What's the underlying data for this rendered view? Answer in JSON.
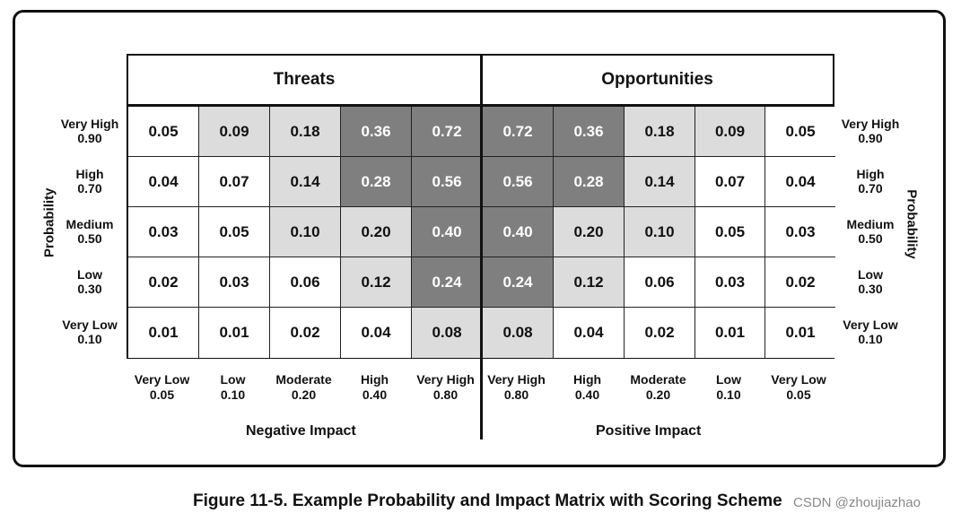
{
  "header": {
    "threats": "Threats",
    "opportunities": "Opportunities"
  },
  "probability_rows": [
    {
      "label": "Very High",
      "value": "0.90"
    },
    {
      "label": "High",
      "value": "0.70"
    },
    {
      "label": "Medium",
      "value": "0.50"
    },
    {
      "label": "Low",
      "value": "0.30"
    },
    {
      "label": "Very Low",
      "value": "0.10"
    }
  ],
  "impact_columns": [
    {
      "label": "Very Low",
      "value": "0.05"
    },
    {
      "label": "Low",
      "value": "0.10"
    },
    {
      "label": "Moderate",
      "value": "0.20"
    },
    {
      "label": "High",
      "value": "0.40"
    },
    {
      "label": "Very High",
      "value": "0.80"
    },
    {
      "label": "Very High",
      "value": "0.80"
    },
    {
      "label": "High",
      "value": "0.40"
    },
    {
      "label": "Moderate",
      "value": "0.20"
    },
    {
      "label": "Low",
      "value": "0.10"
    },
    {
      "label": "Very Low",
      "value": "0.05"
    }
  ],
  "matrix": {
    "values": [
      [
        "0.05",
        "0.09",
        "0.18",
        "0.36",
        "0.72",
        "0.72",
        "0.36",
        "0.18",
        "0.09",
        "0.05"
      ],
      [
        "0.04",
        "0.07",
        "0.14",
        "0.28",
        "0.56",
        "0.56",
        "0.28",
        "0.14",
        "0.07",
        "0.04"
      ],
      [
        "0.03",
        "0.05",
        "0.10",
        "0.20",
        "0.40",
        "0.40",
        "0.20",
        "0.10",
        "0.05",
        "0.03"
      ],
      [
        "0.02",
        "0.03",
        "0.06",
        "0.12",
        "0.24",
        "0.24",
        "0.12",
        "0.06",
        "0.03",
        "0.02"
      ],
      [
        "0.01",
        "0.01",
        "0.02",
        "0.04",
        "0.08",
        "0.08",
        "0.04",
        "0.02",
        "0.01",
        "0.01"
      ]
    ],
    "shading": [
      [
        "white",
        "light",
        "light",
        "dark",
        "dark",
        "dark",
        "dark",
        "light",
        "light",
        "white"
      ],
      [
        "white",
        "white",
        "light",
        "dark",
        "dark",
        "dark",
        "dark",
        "light",
        "white",
        "white"
      ],
      [
        "white",
        "white",
        "light",
        "light",
        "dark",
        "dark",
        "light",
        "light",
        "white",
        "white"
      ],
      [
        "white",
        "white",
        "white",
        "light",
        "dark",
        "dark",
        "light",
        "white",
        "white",
        "white"
      ],
      [
        "white",
        "white",
        "white",
        "white",
        "light",
        "light",
        "white",
        "white",
        "white",
        "white"
      ]
    ],
    "colors": {
      "white": "#ffffff",
      "light": "#dcdcdc",
      "dark": "#7f7f7f"
    }
  },
  "axes": {
    "probability": "Probability",
    "negative_impact": "Negative Impact",
    "positive_impact": "Positive Impact"
  },
  "caption": {
    "title": "Figure 11-5. Example Probability and Impact Matrix with Scoring Scheme",
    "watermark": "CSDN @zhoujiazhao"
  }
}
